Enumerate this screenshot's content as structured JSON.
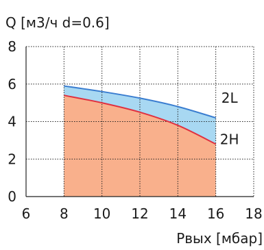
{
  "chart_data": {
    "type": "area",
    "ylabel": "Q [м3/ч d=0.6]",
    "xlabel": "Pвых [мбар]",
    "xlim": [
      6,
      18
    ],
    "ylim": [
      0,
      8
    ],
    "x_ticks": [
      6,
      8,
      10,
      12,
      14,
      16,
      18
    ],
    "y_ticks": [
      0,
      2,
      4,
      6,
      8
    ],
    "grid": true,
    "series": [
      {
        "name": "2L",
        "color": "#3a7dd0",
        "fill": "#a8d8f2",
        "x": [
          8,
          10,
          12,
          14,
          16
        ],
        "y": [
          5.9,
          5.6,
          5.25,
          4.8,
          4.2
        ]
      },
      {
        "name": "2H",
        "color": "#e03040",
        "fill": "#f9b08c",
        "x": [
          8,
          10,
          12,
          14,
          16
        ],
        "y": [
          5.4,
          5.0,
          4.5,
          3.8,
          2.8
        ]
      }
    ]
  }
}
